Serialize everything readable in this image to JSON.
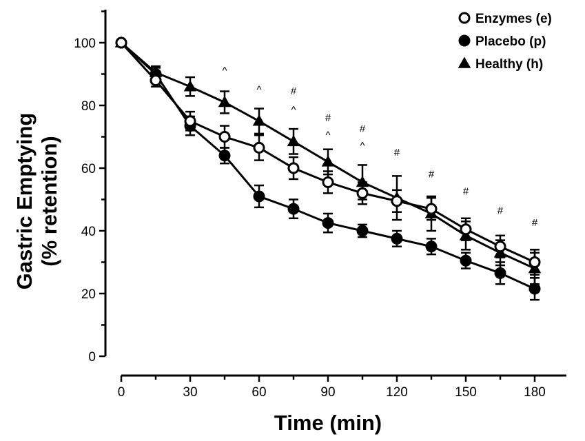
{
  "chart_data": {
    "type": "line",
    "title": "",
    "xlabel": "Time (min)",
    "ylabel_line1": "Gastric Emptying",
    "ylabel_line2": "(% retention)",
    "xlim": [
      0,
      190
    ],
    "ylim": [
      0,
      110
    ],
    "xticks": [
      0,
      30,
      60,
      90,
      120,
      150,
      180
    ],
    "yticks": [
      0,
      20,
      40,
      60,
      80,
      100
    ],
    "grid": false,
    "legend_position": "top-right",
    "series": [
      {
        "name": "Enzymes (e)",
        "marker": "open-circle",
        "color": "#000000",
        "x": [
          0,
          15,
          30,
          45,
          60,
          75,
          90,
          105,
          120,
          135,
          150,
          165,
          180
        ],
        "y": [
          100,
          88,
          75,
          70,
          66.5,
          60,
          55.5,
          52,
          49.5,
          47,
          40.5,
          35,
          30
        ],
        "err": [
          0,
          2,
          3,
          3.5,
          4,
          3.5,
          3.5,
          3.5,
          3.5,
          3.5,
          3.5,
          3.5,
          4
        ]
      },
      {
        "name": "Placebo (p)",
        "marker": "filled-circle",
        "color": "#000000",
        "x": [
          0,
          15,
          30,
          45,
          60,
          75,
          90,
          105,
          120,
          135,
          150,
          165,
          180
        ],
        "y": [
          100,
          90,
          73.5,
          64,
          51,
          47,
          42.5,
          40,
          37.5,
          35,
          30.5,
          26.5,
          21.5
        ],
        "err": [
          0,
          2,
          3,
          2.5,
          3.5,
          3,
          3,
          2,
          2.5,
          2.5,
          2.5,
          3.5,
          3.5
        ]
      },
      {
        "name": "Healthy (h)",
        "marker": "filled-triangle",
        "color": "#000000",
        "x": [
          0,
          15,
          30,
          45,
          60,
          75,
          90,
          105,
          120,
          135,
          150,
          165,
          180
        ],
        "y": [
          100,
          90.5,
          86,
          81,
          75,
          68.5,
          62,
          55.5,
          50.5,
          45.5,
          38.5,
          33,
          28
        ],
        "err": [
          0,
          2,
          3,
          3.5,
          4,
          4,
          4,
          5.5,
          7,
          5.5,
          4.5,
          4,
          5
        ]
      }
    ],
    "annotations": [
      {
        "x": 45,
        "y": 90,
        "text": "^"
      },
      {
        "x": 60,
        "y": 84,
        "text": "^"
      },
      {
        "x": 75,
        "y": 83.5,
        "text": "#"
      },
      {
        "x": 75,
        "y": 77.5,
        "text": "^"
      },
      {
        "x": 90,
        "y": 75,
        "text": "#"
      },
      {
        "x": 90,
        "y": 69.5,
        "text": "^"
      },
      {
        "x": 105,
        "y": 71.5,
        "text": "#"
      },
      {
        "x": 105,
        "y": 66,
        "text": "^"
      },
      {
        "x": 120,
        "y": 64,
        "text": "#"
      },
      {
        "x": 135,
        "y": 57,
        "text": "#"
      },
      {
        "x": 150,
        "y": 51.5,
        "text": "#"
      },
      {
        "x": 165,
        "y": 45.5,
        "text": "#"
      },
      {
        "x": 180,
        "y": 41.5,
        "text": "#"
      }
    ]
  }
}
